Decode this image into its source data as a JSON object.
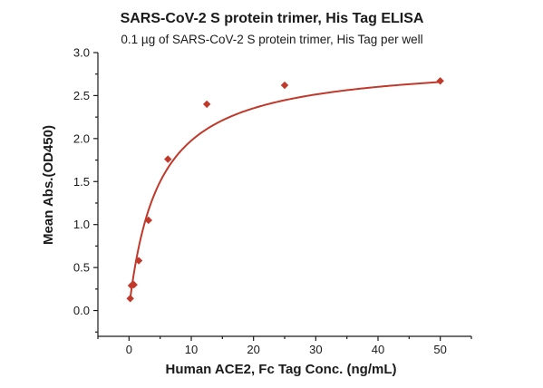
{
  "chart_data": {
    "type": "scatter",
    "title": "SARS-CoV-2 S protein trimer, His Tag ELISA",
    "subtitle": "0.1 µg of SARS-CoV-2 S protein trimer, His Tag per well",
    "xlabel": "Human ACE2, Fc Tag Conc. (ng/mL)",
    "ylabel": "Mean Abs.(OD450)",
    "xlim": [
      -5,
      55
    ],
    "ylim": [
      -0.3,
      3.0
    ],
    "xticks": [
      0,
      10,
      20,
      30,
      40,
      50
    ],
    "yticks": [
      0.0,
      0.5,
      1.0,
      1.5,
      2.0,
      2.5,
      3.0
    ],
    "xtick_labels": [
      "0",
      "10",
      "20",
      "30",
      "40",
      "50"
    ],
    "ytick_labels": [
      "0.0",
      "0.5",
      "1.0",
      "1.5",
      "2.0",
      "2.5",
      "3.0"
    ],
    "grid": false,
    "series": [
      {
        "points": [
          {
            "x": 0.195,
            "y": 0.14
          },
          {
            "x": 0.39,
            "y": 0.29
          },
          {
            "x": 0.78,
            "y": 0.3
          },
          {
            "x": 1.56,
            "y": 0.58
          },
          {
            "x": 3.125,
            "y": 1.05
          },
          {
            "x": 6.25,
            "y": 1.76
          },
          {
            "x": 12.5,
            "y": 2.4
          },
          {
            "x": 25,
            "y": 2.62
          },
          {
            "x": 50,
            "y": 2.67
          }
        ],
        "fit": {
          "model": "hyperbolic",
          "bmax": 2.88,
          "kd": 4.8,
          "bottom": 0.03
        }
      }
    ],
    "colors": {
      "marker": "#c0392b",
      "fit_line": "#c0392b",
      "axis": "#1a1a1a"
    }
  }
}
